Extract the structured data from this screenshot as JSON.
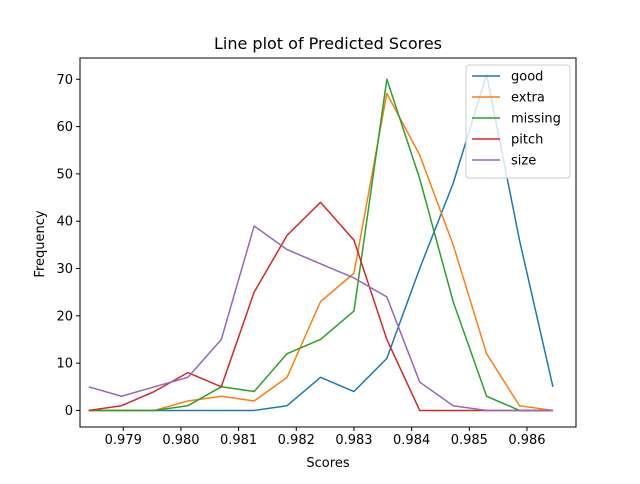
{
  "chart_data": {
    "type": "line",
    "title": "Line plot of Predicted Scores",
    "xlabel": "Scores",
    "ylabel": "Frequency",
    "xlim": [
      0.97825,
      0.98685
    ],
    "ylim": [
      -3.5,
      74.5
    ],
    "xticks": [
      0.979,
      0.98,
      0.981,
      0.982,
      0.983,
      0.984,
      0.985,
      0.986
    ],
    "xtick_labels": [
      "0.979",
      "0.980",
      "0.981",
      "0.982",
      "0.983",
      "0.984",
      "0.985",
      "0.986"
    ],
    "yticks": [
      0,
      10,
      20,
      30,
      40,
      50,
      60,
      70
    ],
    "ytick_labels": [
      "0",
      "10",
      "20",
      "30",
      "40",
      "50",
      "60",
      "70"
    ],
    "grid": false,
    "legend_position": "top-right",
    "x": [
      0.9784,
      0.97897,
      0.97954,
      0.98012,
      0.9807,
      0.98127,
      0.98184,
      0.98242,
      0.983,
      0.98357,
      0.98414,
      0.98472,
      0.9853,
      0.98587,
      0.98645
    ],
    "series": [
      {
        "name": "good",
        "color": "#1f77b4",
        "values": [
          0,
          0,
          0,
          0,
          0,
          0,
          1,
          7,
          4,
          11,
          30,
          48,
          71,
          36,
          5
        ]
      },
      {
        "name": "extra",
        "color": "#ff7f0e",
        "values": [
          0,
          0,
          0,
          2,
          3,
          2,
          7,
          23,
          29,
          67,
          54,
          35,
          12,
          1,
          0
        ]
      },
      {
        "name": "missing",
        "color": "#2ca02c",
        "values": [
          0,
          0,
          0,
          1,
          5,
          4,
          12,
          15,
          21,
          70,
          49,
          23,
          3,
          0,
          0
        ]
      },
      {
        "name": "pitch",
        "color": "#d62728",
        "values": [
          0,
          1,
          4,
          8,
          5,
          25,
          37,
          44,
          36,
          15,
          0,
          0,
          0,
          0,
          0
        ]
      },
      {
        "name": "size",
        "color": "#9467bd",
        "values": [
          5,
          3,
          5,
          7,
          15,
          39,
          34,
          31,
          28,
          24,
          6,
          1,
          0,
          0,
          0
        ]
      }
    ]
  }
}
